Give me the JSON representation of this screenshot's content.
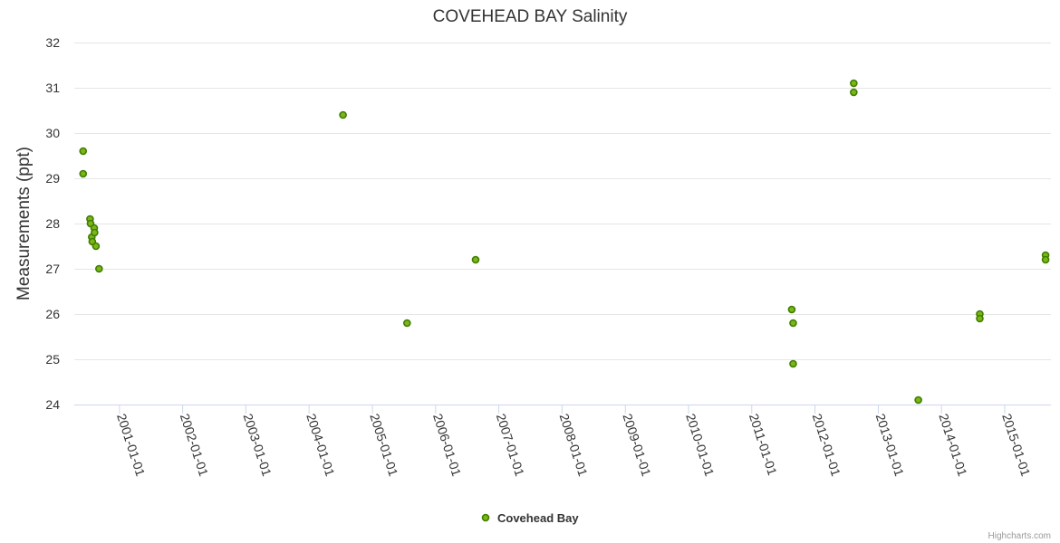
{
  "chart_data": {
    "type": "scatter",
    "title": "COVEHEAD BAY Salinity",
    "ylabel": "Measurements (ppt)",
    "xlabel": "",
    "ylim": [
      24,
      32
    ],
    "yticks": [
      24,
      25,
      26,
      27,
      28,
      29,
      30,
      31,
      32
    ],
    "xlim": [
      "2000-04-15",
      "2015-09-25"
    ],
    "xticks": [
      "2001-01-01",
      "2002-01-01",
      "2003-01-01",
      "2004-01-01",
      "2005-01-01",
      "2006-01-01",
      "2007-01-01",
      "2008-01-01",
      "2009-01-01",
      "2010-01-01",
      "2011-01-01",
      "2012-01-01",
      "2013-01-01",
      "2014-01-01",
      "2015-01-01"
    ],
    "grid": true,
    "legend_position": "bottom-center",
    "series": [
      {
        "name": "Covehead Bay",
        "color": "#7cb518",
        "edge_color": "#3f7d00",
        "points": [
          {
            "x": "2000-06-05",
            "y": 29.6
          },
          {
            "x": "2000-06-05",
            "y": 29.1
          },
          {
            "x": "2000-07-15",
            "y": 28.1
          },
          {
            "x": "2000-07-18",
            "y": 28.0
          },
          {
            "x": "2000-07-25",
            "y": 27.7
          },
          {
            "x": "2000-07-28",
            "y": 27.6
          },
          {
            "x": "2000-08-08",
            "y": 27.9
          },
          {
            "x": "2000-08-10",
            "y": 27.8
          },
          {
            "x": "2000-08-18",
            "y": 27.5
          },
          {
            "x": "2000-09-05",
            "y": 27.0
          },
          {
            "x": "2004-07-15",
            "y": 30.4
          },
          {
            "x": "2005-07-20",
            "y": 25.8
          },
          {
            "x": "2006-08-20",
            "y": 27.2
          },
          {
            "x": "2011-08-20",
            "y": 26.1
          },
          {
            "x": "2011-08-28",
            "y": 25.8
          },
          {
            "x": "2011-08-28",
            "y": 24.9
          },
          {
            "x": "2012-08-12",
            "y": 31.1
          },
          {
            "x": "2012-08-12",
            "y": 30.9
          },
          {
            "x": "2013-08-20",
            "y": 24.1
          },
          {
            "x": "2014-08-10",
            "y": 26.0
          },
          {
            "x": "2014-08-10",
            "y": 25.9
          },
          {
            "x": "2015-08-25",
            "y": 27.3
          },
          {
            "x": "2015-08-25",
            "y": 27.2
          }
        ]
      }
    ]
  },
  "credits": "Highcharts.com"
}
